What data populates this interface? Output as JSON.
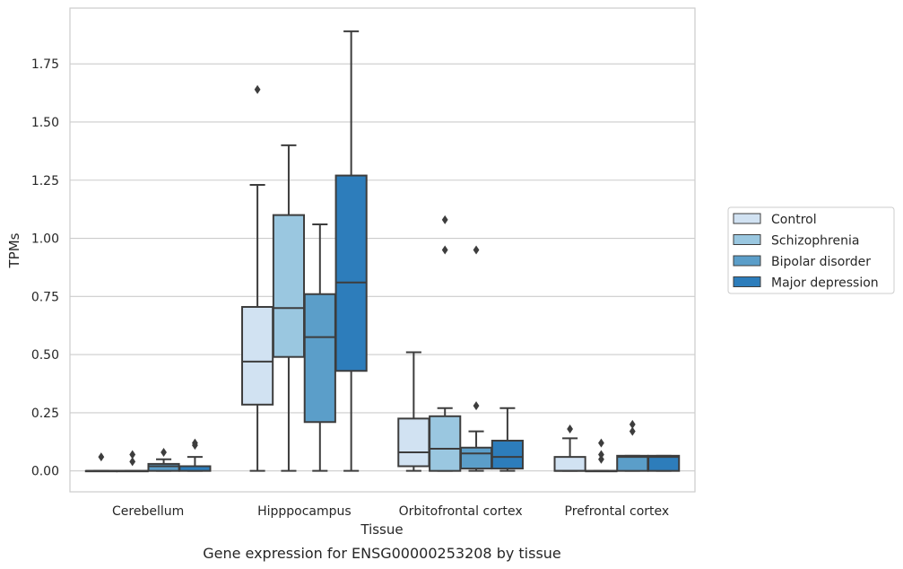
{
  "chart_data": {
    "type": "box",
    "caption": "Gene expression for ENSG00000253208 by tissue",
    "xlabel": "Tissue",
    "ylabel": "TPMs",
    "ylim": [
      -0.09,
      1.99
    ],
    "yticks": [
      0.0,
      0.25,
      0.5,
      0.75,
      1.0,
      1.25,
      1.5,
      1.75
    ],
    "ytick_labels": [
      "0.00",
      "0.25",
      "0.50",
      "0.75",
      "1.00",
      "1.25",
      "1.50",
      "1.75"
    ],
    "grid": "horizontal",
    "legend_position": "right",
    "categories": [
      "Cerebellum",
      "Hipppocampus",
      "Orbitofrontal cortex",
      "Prefrontal cortex"
    ],
    "series": [
      {
        "name": "Control",
        "color": "#d1e2f2",
        "boxes": [
          {
            "whislo": 0.0,
            "q1": 0.0,
            "med": 0.0,
            "q3": 0.0,
            "whishi": 0.0,
            "fliers": [
              0.06
            ]
          },
          {
            "whislo": 0.0,
            "q1": 0.285,
            "med": 0.47,
            "q3": 0.705,
            "whishi": 1.23,
            "fliers": [
              1.64
            ]
          },
          {
            "whislo": 0.0,
            "q1": 0.02,
            "med": 0.08,
            "q3": 0.225,
            "whishi": 0.51,
            "fliers": []
          },
          {
            "whislo": 0.0,
            "q1": 0.0,
            "med": 0.0,
            "q3": 0.06,
            "whishi": 0.14,
            "fliers": [
              0.18
            ]
          }
        ]
      },
      {
        "name": "Schizophrenia",
        "color": "#9ac7e0",
        "boxes": [
          {
            "whislo": 0.0,
            "q1": 0.0,
            "med": 0.0,
            "q3": 0.0,
            "whishi": 0.0,
            "fliers": [
              0.04,
              0.07
            ]
          },
          {
            "whislo": 0.0,
            "q1": 0.49,
            "med": 0.7,
            "q3": 1.1,
            "whishi": 1.4,
            "fliers": []
          },
          {
            "whislo": 0.0,
            "q1": 0.0,
            "med": 0.095,
            "q3": 0.235,
            "whishi": 0.27,
            "fliers": [
              0.95,
              1.08
            ]
          },
          {
            "whislo": 0.0,
            "q1": 0.0,
            "med": 0.0,
            "q3": 0.0,
            "whishi": 0.0,
            "fliers": [
              0.05,
              0.07,
              0.12
            ]
          }
        ]
      },
      {
        "name": "Bipolar disorder",
        "color": "#5b9ec9",
        "boxes": [
          {
            "whislo": 0.0,
            "q1": 0.0,
            "med": 0.02,
            "q3": 0.03,
            "whishi": 0.05,
            "fliers": [
              0.08
            ]
          },
          {
            "whislo": 0.0,
            "q1": 0.21,
            "med": 0.575,
            "q3": 0.76,
            "whishi": 1.06,
            "fliers": []
          },
          {
            "whislo": 0.0,
            "q1": 0.01,
            "med": 0.075,
            "q3": 0.1,
            "whishi": 0.17,
            "fliers": [
              0.28,
              0.95
            ]
          },
          {
            "whislo": 0.0,
            "q1": 0.0,
            "med": 0.06,
            "q3": 0.065,
            "whishi": 0.065,
            "fliers": [
              0.17,
              0.2
            ]
          }
        ]
      },
      {
        "name": "Major depression",
        "color": "#2d7dbb",
        "boxes": [
          {
            "whislo": 0.0,
            "q1": 0.0,
            "med": 0.02,
            "q3": 0.02,
            "whishi": 0.06,
            "fliers": [
              0.11,
              0.12
            ]
          },
          {
            "whislo": 0.0,
            "q1": 0.43,
            "med": 0.81,
            "q3": 1.27,
            "whishi": 1.89,
            "fliers": []
          },
          {
            "whislo": 0.0,
            "q1": 0.01,
            "med": 0.06,
            "q3": 0.13,
            "whishi": 0.27,
            "fliers": []
          },
          {
            "whislo": 0.0,
            "q1": 0.0,
            "med": 0.06,
            "q3": 0.065,
            "whishi": 0.065,
            "fliers": []
          }
        ]
      }
    ]
  }
}
